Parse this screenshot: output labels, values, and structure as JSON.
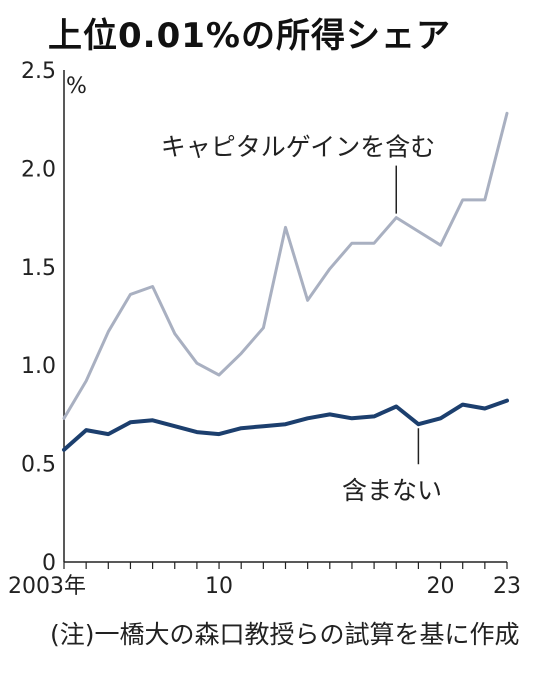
{
  "title": "上位0.01%の所得シェア",
  "note": "(注)一橋大の森口教授らの試算を基に作成",
  "colors": {
    "with_gains": "#a9b0c1",
    "without_gains": "#1c3f6e",
    "axis": "#222222"
  },
  "chart_data": {
    "type": "line",
    "unit_label": "%",
    "ylim": [
      0,
      2.5
    ],
    "yticks": [
      "0",
      "0.5",
      "1.0",
      "1.5",
      "2.0",
      "2.5"
    ],
    "xlim": [
      2003,
      2023
    ],
    "xtick_labels": [
      {
        "x": 2003,
        "label": "2003年"
      },
      {
        "x": 2010,
        "label": "10"
      },
      {
        "x": 2020,
        "label": "20"
      },
      {
        "x": 2023,
        "label": "23"
      }
    ],
    "x": [
      2003,
      2004,
      2005,
      2006,
      2007,
      2008,
      2009,
      2010,
      2011,
      2012,
      2013,
      2014,
      2015,
      2016,
      2017,
      2018,
      2019,
      2020,
      2021,
      2022,
      2023
    ],
    "series": [
      {
        "name": "キャピタルゲインを含む",
        "color": "#a9b0c1",
        "values": [
          0.73,
          0.92,
          1.17,
          1.36,
          1.4,
          1.16,
          1.01,
          0.95,
          1.06,
          1.19,
          1.7,
          1.33,
          1.49,
          1.62,
          1.62,
          1.75,
          1.68,
          1.61,
          1.84,
          1.84,
          2.28
        ],
        "label_anchor": {
          "x": 2018,
          "y": 1.75
        }
      },
      {
        "name": "含まない",
        "color": "#1c3f6e",
        "values": [
          0.57,
          0.67,
          0.65,
          0.71,
          0.72,
          0.69,
          0.66,
          0.65,
          0.68,
          0.69,
          0.7,
          0.73,
          0.75,
          0.73,
          0.74,
          0.79,
          0.7,
          0.73,
          0.8,
          0.78,
          0.82
        ],
        "label_anchor": {
          "x": 2019,
          "y": 0.7
        }
      }
    ],
    "grid": false,
    "legend": "inline labels"
  }
}
